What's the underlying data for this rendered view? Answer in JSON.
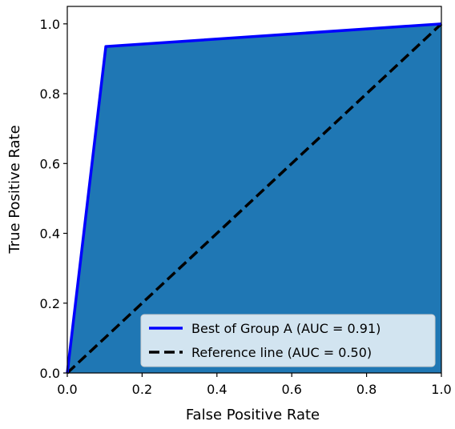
{
  "chart_data": {
    "type": "area",
    "title": "",
    "xlabel": "False Positive Rate",
    "ylabel": "True Positive Rate",
    "xlim": [
      0.0,
      1.0
    ],
    "ylim": [
      0.0,
      1.05
    ],
    "xticks": [
      "0.0",
      "0.2",
      "0.4",
      "0.6",
      "0.8",
      "1.0"
    ],
    "yticks": [
      "0.0",
      "0.2",
      "0.4",
      "0.6",
      "0.8",
      "1.0"
    ],
    "grid": false,
    "legend_position": "lower-right",
    "series": [
      {
        "name": "Best of Group A (AUC = 0.91)",
        "style": "solid",
        "color": "#0000ff",
        "fill_color": "#1f77b4",
        "x": [
          0.0,
          0.103,
          1.0
        ],
        "y": [
          0.0,
          0.935,
          1.0
        ]
      },
      {
        "name": "Reference line (AUC = 0.50)",
        "style": "dashed",
        "color": "#000000",
        "x": [
          0.0,
          1.0
        ],
        "y": [
          0.0,
          1.0
        ]
      }
    ]
  }
}
